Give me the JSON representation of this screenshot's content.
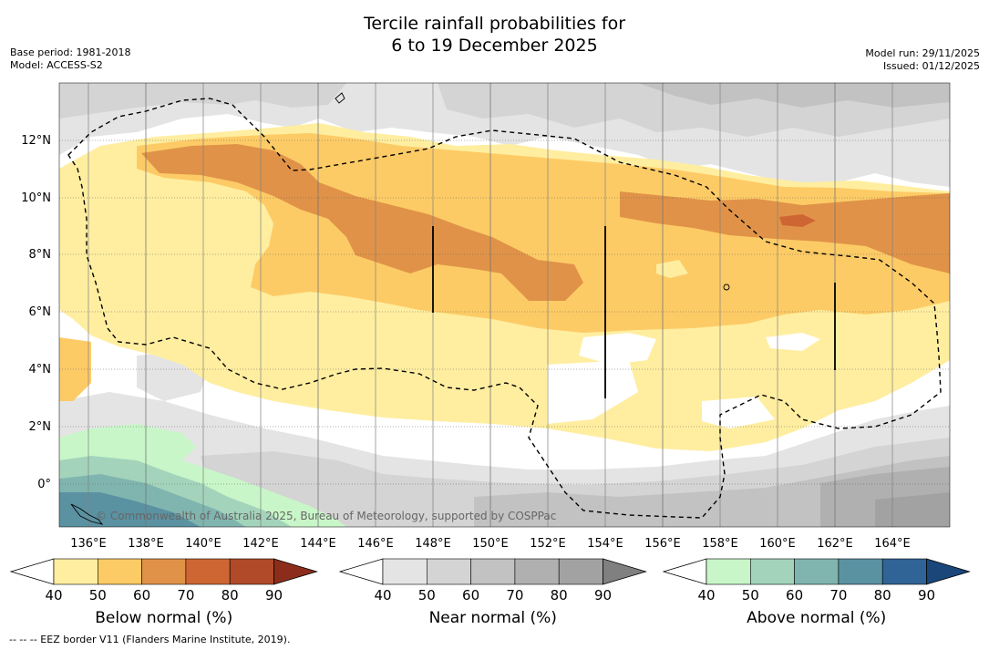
{
  "title": {
    "line1": "Tercile rainfall probabilities for",
    "line2": "6 to 19 December 2025"
  },
  "meta_left": {
    "base_period": "Base period: 1981-2018",
    "model": "Model: ACCESS-S2"
  },
  "meta_right": {
    "model_run": "Model run: 29/11/2025",
    "issued": "Issued: 01/12/2025"
  },
  "map": {
    "lat_labels": [
      "12°N",
      "10°N",
      "8°N",
      "6°N",
      "4°N",
      "2°N",
      "0°"
    ],
    "lon_labels": [
      "136°E",
      "138°E",
      "140°E",
      "142°E",
      "144°E",
      "146°E",
      "148°E",
      "150°E",
      "152°E",
      "154°E",
      "156°E",
      "158°E",
      "160°E",
      "162°E",
      "164°E"
    ],
    "watermark": "© Commonwealth of Australia 2025, Bureau of Meteorology, supported by COSPPac"
  },
  "colorbars": [
    {
      "label": "Below normal (%)",
      "ticks": [
        "40",
        "50",
        "60",
        "70",
        "80",
        "90"
      ],
      "colors": [
        "#ffffff",
        "#ffeea0",
        "#fdcb66",
        "#e09348",
        "#cd6633",
        "#b04a28",
        "#8c2d1c"
      ]
    },
    {
      "label": "Near normal (%)",
      "ticks": [
        "40",
        "50",
        "60",
        "70",
        "80",
        "90"
      ],
      "colors": [
        "#ffffff",
        "#e4e4e4",
        "#d4d4d4",
        "#c2c2c2",
        "#b0b0b0",
        "#a2a2a2",
        "#808080"
      ]
    },
    {
      "label": "Above normal (%)",
      "ticks": [
        "40",
        "50",
        "60",
        "70",
        "80",
        "90"
      ],
      "colors": [
        "#ffffff",
        "#c8f6c8",
        "#a3d4bb",
        "#80b5af",
        "#5b92a2",
        "#316496",
        "#1a467a"
      ]
    }
  ],
  "footnote": "--  --  -- EEZ border V11 (Flanders Marine Institute, 2019)."
}
